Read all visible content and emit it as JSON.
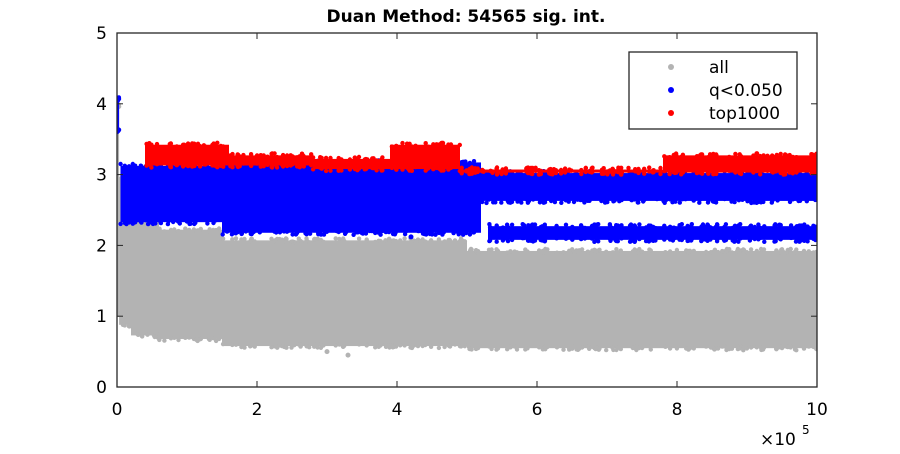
{
  "chart_data": {
    "type": "scatter",
    "title": "Duan Method: 54565 sig. int.",
    "xlabel": "",
    "ylabel": "",
    "xlim": [
      0,
      1000000
    ],
    "ylim": [
      0,
      5
    ],
    "x_ticks": [
      0,
      200000,
      400000,
      600000,
      800000,
      1000000
    ],
    "x_tick_labels": [
      "0",
      "2",
      "4",
      "6",
      "8",
      "10"
    ],
    "x_exponent_label": {
      "base": "×10",
      "exponent": "5"
    },
    "y_ticks": [
      0,
      1,
      2,
      3,
      4,
      5
    ],
    "y_tick_labels": [
      "0",
      "1",
      "2",
      "3",
      "4",
      "5"
    ],
    "grid": false,
    "legend_position": "top-right",
    "series": [
      {
        "name": "all",
        "color": "#b3b3b3",
        "bands": [
          {
            "x": [
              0,
              3000
            ],
            "y": [
              1.0,
              4.0
            ]
          },
          {
            "x": [
              3000,
              20000
            ],
            "y": [
              0.85,
              3.0
            ]
          },
          {
            "x": [
              20000,
              60000
            ],
            "y": [
              0.7,
              2.5
            ]
          },
          {
            "x": [
              60000,
              150000
            ],
            "y": [
              0.65,
              2.25
            ]
          },
          {
            "x": [
              150000,
              500000
            ],
            "y": [
              0.55,
              2.1
            ]
          },
          {
            "x": [
              500000,
              1000000
            ],
            "y": [
              0.52,
              1.95
            ]
          }
        ],
        "outliers": [
          {
            "x": 330000,
            "y": 0.45
          },
          {
            "x": 300000,
            "y": 0.5
          }
        ]
      },
      {
        "name": "q<0.050",
        "color": "#0000ff",
        "bands": [
          {
            "x": [
              0,
              3000
            ],
            "y": [
              3.6,
              4.1
            ]
          },
          {
            "x": [
              5000,
              150000
            ],
            "y": [
              2.3,
              3.15
            ]
          },
          {
            "x": [
              150000,
              520000
            ],
            "y": [
              2.15,
              3.2
            ]
          },
          {
            "x": [
              520000,
              1000000
            ],
            "y": [
              2.6,
              3.05
            ]
          },
          {
            "x": [
              530000,
              1000000
            ],
            "y": [
              2.05,
              2.3
            ]
          }
        ],
        "outliers": [
          {
            "x": 420000,
            "y": 2.12
          },
          {
            "x": 460000,
            "y": 2.18
          },
          {
            "x": 1000,
            "y": 4.05
          }
        ]
      },
      {
        "name": "top1000",
        "color": "#ff0000",
        "bands": [
          {
            "x": [
              40000,
              160000
            ],
            "y": [
              3.1,
              3.45
            ]
          },
          {
            "x": [
              160000,
              280000
            ],
            "y": [
              3.1,
              3.3
            ]
          },
          {
            "x": [
              280000,
              390000
            ],
            "y": [
              3.05,
              3.25
            ]
          },
          {
            "x": [
              390000,
              490000
            ],
            "y": [
              3.05,
              3.45
            ]
          },
          {
            "x": [
              490000,
              780000
            ],
            "y": [
              3.0,
              3.1
            ]
          },
          {
            "x": [
              780000,
              1000000
            ],
            "y": [
              3.0,
              3.3
            ]
          }
        ],
        "outliers": []
      }
    ]
  }
}
